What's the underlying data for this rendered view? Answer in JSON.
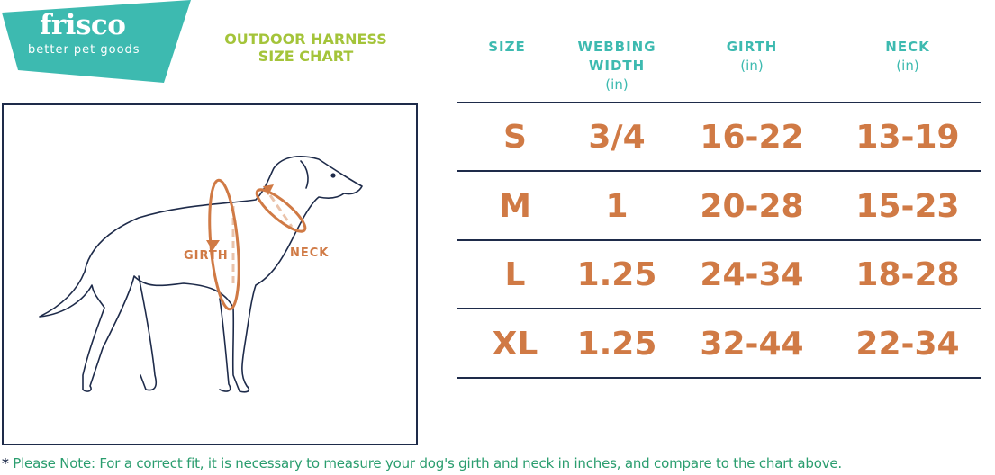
{
  "brand": {
    "name": "frisco",
    "tagline": "better pet goods",
    "color": "#3dbab0"
  },
  "title": {
    "line1": "OUTDOOR HARNESS",
    "line2": "SIZE CHART",
    "color": "#a4c43a"
  },
  "diagram": {
    "girth_label": "GIRTH",
    "neck_label": "NECK",
    "arrow_color": "#d07a45"
  },
  "table": {
    "headers": [
      {
        "label": "SIZE",
        "unit": ""
      },
      {
        "label": "WEBBING WIDTH",
        "unit": "(in)"
      },
      {
        "label": "GIRTH",
        "unit": "(in)"
      },
      {
        "label": "NECK",
        "unit": "(in)"
      }
    ],
    "rows": [
      [
        "S",
        "3/4",
        "16-22",
        "13-19"
      ],
      [
        "M",
        "1",
        "20-28",
        "15-23"
      ],
      [
        "L",
        "1.25",
        "24-34",
        "18-28"
      ],
      [
        "XL",
        "1.25",
        "32-44",
        "22-34"
      ]
    ],
    "value_color": "#d07a45"
  },
  "note": {
    "star": "*",
    "text": "Please Note: For a correct fit, it is necessary to measure your dog's girth and neck in inches, and compare to the chart above."
  }
}
